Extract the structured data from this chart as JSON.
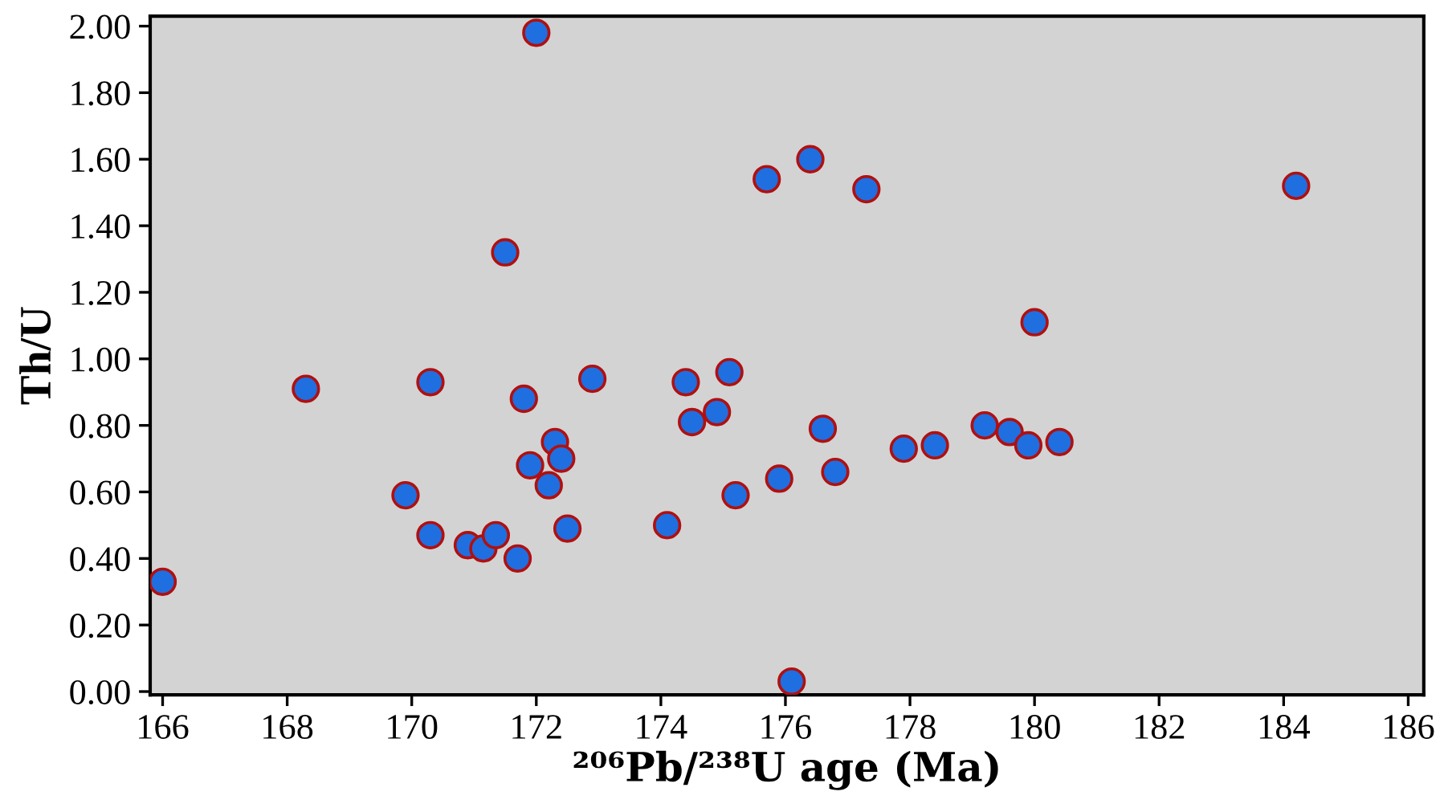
{
  "chart_data": {
    "type": "scatter",
    "xlabel": "²⁰⁶Pb/²³⁸U age (Ma)",
    "ylabel": "Th/U",
    "x": [
      166.0,
      168.3,
      169.9,
      170.3,
      170.3,
      170.9,
      171.15,
      171.35,
      171.7,
      171.5,
      171.8,
      171.9,
      172.0,
      172.2,
      172.3,
      172.4,
      172.5,
      172.9,
      174.1,
      174.4,
      174.5,
      174.9,
      175.1,
      175.2,
      175.7,
      175.9,
      176.1,
      176.4,
      176.6,
      176.8,
      177.3,
      177.9,
      178.4,
      179.2,
      179.6,
      179.9,
      180.0,
      180.4,
      184.2
    ],
    "series": [
      {
        "color": "#1f6fe0",
        "values": [
          0.33,
          0.91,
          0.59,
          0.93,
          0.47,
          0.44,
          0.43,
          0.47,
          0.4,
          1.32,
          0.88,
          0.68,
          1.98,
          0.62,
          0.75,
          0.7,
          0.49,
          0.94,
          0.5,
          0.93,
          0.81,
          0.84,
          0.96,
          0.59,
          1.54,
          0.64,
          0.03,
          1.6,
          0.79,
          0.66,
          1.51,
          0.73,
          0.74,
          0.8,
          0.78,
          0.74,
          1.11,
          0.75,
          1.52
        ]
      }
    ],
    "marker": "circle",
    "grid": false,
    "legend": false,
    "xlim": [
      165.8,
      186.25
    ],
    "ylim": [
      -0.01,
      2.03
    ],
    "xticks": [
      166,
      168,
      170,
      172,
      174,
      176,
      178,
      180,
      182,
      184,
      186
    ],
    "yticks": [
      {
        "value": 0,
        "label": "0.00"
      },
      {
        "value": 0.2,
        "label": "0.20"
      },
      {
        "value": 0.4,
        "label": "0.40"
      },
      {
        "value": 0.6,
        "label": "0.60"
      },
      {
        "value": 0.8,
        "label": "0.80"
      },
      {
        "value": 1.0,
        "label": "1.00"
      },
      {
        "value": 1.2,
        "label": "1.20"
      },
      {
        "value": 1.4,
        "label": "1.40"
      },
      {
        "value": 1.6,
        "label": "1.60"
      },
      {
        "value": 1.8,
        "label": "1.80"
      },
      {
        "value": 2.0,
        "label": "2.00"
      }
    ]
  }
}
